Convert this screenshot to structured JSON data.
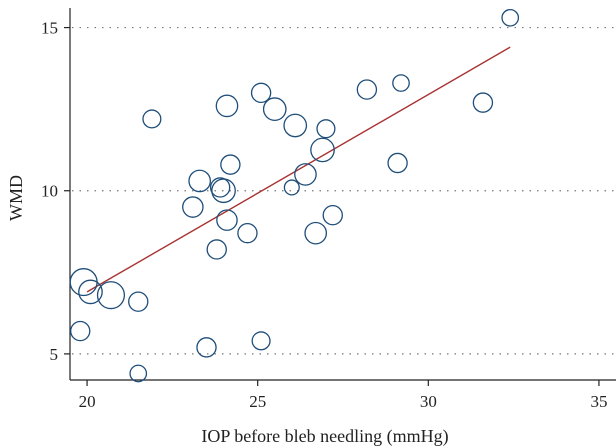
{
  "chart_data": {
    "type": "scatter",
    "title": "",
    "xlabel": "IOP before bleb needling (mmHg)",
    "ylabel": "WMD",
    "xlim": [
      19.5,
      35.5
    ],
    "ylim": [
      4.2,
      15.6
    ],
    "xticks": [
      20,
      25,
      30,
      35
    ],
    "yticks": [
      5,
      10,
      15
    ],
    "grid": "horizontal dotted at y ticks",
    "colors": {
      "marker": "#1f4e79",
      "fit_line": "#a83232",
      "grid": "#777777"
    },
    "points": [
      {
        "x": 19.9,
        "y": 7.2,
        "w": 14
      },
      {
        "x": 20.1,
        "y": 6.9,
        "w": 10
      },
      {
        "x": 20.7,
        "y": 6.8,
        "w": 14
      },
      {
        "x": 19.8,
        "y": 5.7,
        "w": 6
      },
      {
        "x": 21.5,
        "y": 6.6,
        "w": 6
      },
      {
        "x": 21.5,
        "y": 4.4,
        "w": 4
      },
      {
        "x": 21.9,
        "y": 12.2,
        "w": 5
      },
      {
        "x": 23.1,
        "y": 9.5,
        "w": 7
      },
      {
        "x": 23.3,
        "y": 10.3,
        "w": 8
      },
      {
        "x": 23.5,
        "y": 5.2,
        "w": 6
      },
      {
        "x": 23.8,
        "y": 8.2,
        "w": 6
      },
      {
        "x": 23.9,
        "y": 10.1,
        "w": 6
      },
      {
        "x": 24.0,
        "y": 10.0,
        "w": 10
      },
      {
        "x": 24.1,
        "y": 9.1,
        "w": 7
      },
      {
        "x": 24.1,
        "y": 12.6,
        "w": 8
      },
      {
        "x": 24.2,
        "y": 10.8,
        "w": 6
      },
      {
        "x": 24.7,
        "y": 8.7,
        "w": 6
      },
      {
        "x": 25.1,
        "y": 5.4,
        "w": 5
      },
      {
        "x": 25.1,
        "y": 13.0,
        "w": 6
      },
      {
        "x": 25.5,
        "y": 12.5,
        "w": 9
      },
      {
        "x": 26.0,
        "y": 10.1,
        "w": 3
      },
      {
        "x": 26.1,
        "y": 12.0,
        "w": 9
      },
      {
        "x": 26.4,
        "y": 10.5,
        "w": 8
      },
      {
        "x": 26.7,
        "y": 8.7,
        "w": 8
      },
      {
        "x": 26.9,
        "y": 11.25,
        "w": 10
      },
      {
        "x": 27.0,
        "y": 11.9,
        "w": 5
      },
      {
        "x": 27.2,
        "y": 9.25,
        "w": 6
      },
      {
        "x": 28.2,
        "y": 13.1,
        "w": 6
      },
      {
        "x": 29.1,
        "y": 10.85,
        "w": 6
      },
      {
        "x": 29.2,
        "y": 13.3,
        "w": 4
      },
      {
        "x": 31.6,
        "y": 12.7,
        "w": 6
      },
      {
        "x": 32.4,
        "y": 15.3,
        "w": 4
      }
    ],
    "fit_line": {
      "x": [
        20.0,
        32.4
      ],
      "y": [
        6.9,
        14.4
      ]
    }
  }
}
